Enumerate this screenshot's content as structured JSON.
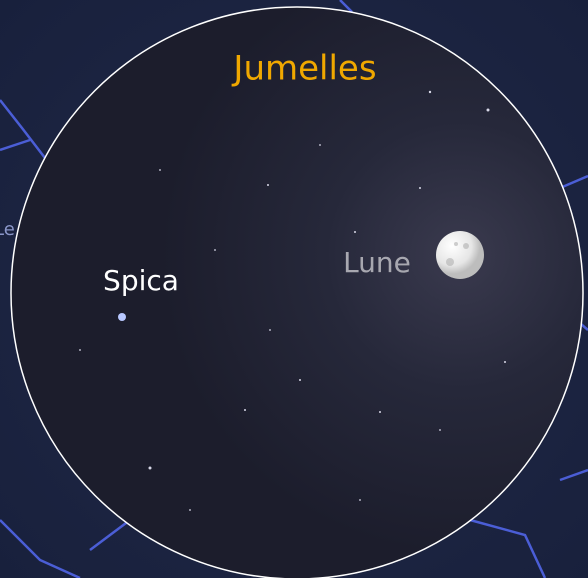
{
  "view_title": "Jumelles",
  "objects": [
    "Spica",
    "Lune"
  ],
  "edge_label": "Le"
}
